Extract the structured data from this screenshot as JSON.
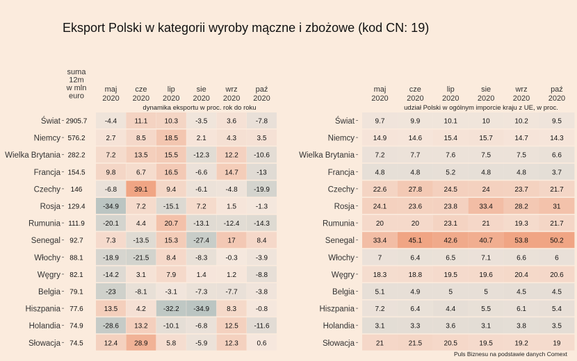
{
  "title": "Eksport Polski w kategorii wyroby mączne i zbożowe (kod CN: 19)",
  "source": "Puls Biznesu na podstawie danych Comext",
  "colors": {
    "background": "#fbebdd",
    "low": "#b9c4c1",
    "mid": "#f6e8de",
    "high": "#f0a584"
  },
  "chart_data": [
    {
      "type": "heatmap",
      "sum_header": [
        "suma",
        "12m",
        "w mln",
        "euro"
      ],
      "columns": [
        {
          "month": "maj",
          "year": "2020"
        },
        {
          "month": "cze",
          "year": "2020"
        },
        {
          "month": "lip",
          "year": "2020"
        },
        {
          "month": "sie",
          "year": "2020"
        },
        {
          "month": "wrz",
          "year": "2020"
        },
        {
          "month": "paź",
          "year": "2020"
        }
      ],
      "subtitle": "dynamika eksportu w proc. rok do roku",
      "rows": [
        {
          "country": "Świat",
          "sum": "2905.7",
          "values": [
            -4.4,
            11.1,
            10.3,
            -3.5,
            3.6,
            -7.8
          ]
        },
        {
          "country": "Niemcy",
          "sum": "576.2",
          "values": [
            2.7,
            8.5,
            18.5,
            2.1,
            4.3,
            3.5
          ]
        },
        {
          "country": "Wielka Brytania",
          "sum": "282.2",
          "values": [
            7.2,
            13.5,
            15.5,
            -12.3,
            12.2,
            -10.6
          ]
        },
        {
          "country": "Francja",
          "sum": "154.5",
          "values": [
            9.8,
            6.7,
            16.5,
            -6.6,
            14.7,
            -13
          ]
        },
        {
          "country": "Czechy",
          "sum": "146",
          "values": [
            -6.8,
            39.1,
            9.4,
            -6.1,
            -4.8,
            -19.9
          ]
        },
        {
          "country": "Rosja",
          "sum": "129.4",
          "values": [
            -34.9,
            7.2,
            -15.1,
            7.2,
            1.5,
            -1.3
          ]
        },
        {
          "country": "Rumunia",
          "sum": "111.9",
          "values": [
            -20.1,
            4.4,
            20.7,
            -13.1,
            -12.4,
            -14.3
          ]
        },
        {
          "country": "Senegal",
          "sum": "92.7",
          "values": [
            7.3,
            -13.5,
            15.3,
            -27.4,
            17,
            8.4
          ]
        },
        {
          "country": "Włochy",
          "sum": "88.1",
          "values": [
            -18.9,
            -21.5,
            8.4,
            -8.3,
            -0.3,
            -3.9
          ]
        },
        {
          "country": "Węgry",
          "sum": "82.1",
          "values": [
            -14.2,
            3.1,
            7.9,
            1.4,
            1.2,
            -8.8
          ]
        },
        {
          "country": "Belgia",
          "sum": "79.1",
          "values": [
            -23,
            -8.1,
            -3.1,
            -7.3,
            -7.7,
            -3.8
          ]
        },
        {
          "country": "Hiszpania",
          "sum": "77.6",
          "values": [
            13.5,
            4.2,
            -32.2,
            -34.9,
            8.3,
            -0.8
          ]
        },
        {
          "country": "Holandia",
          "sum": "74.9",
          "values": [
            -28.6,
            13.2,
            -10.1,
            -6.8,
            12.5,
            -11.6
          ]
        },
        {
          "country": "Słowacja",
          "sum": "74.5",
          "values": [
            12.4,
            28.9,
            5.8,
            -5.9,
            12.3,
            0.6
          ]
        }
      ]
    },
    {
      "type": "heatmap",
      "columns": [
        {
          "month": "maj",
          "year": "2020"
        },
        {
          "month": "cze",
          "year": "2020"
        },
        {
          "month": "lip",
          "year": "2020"
        },
        {
          "month": "sie",
          "year": "2020"
        },
        {
          "month": "wrz",
          "year": "2020"
        },
        {
          "month": "paź",
          "year": "2020"
        }
      ],
      "subtitle": "udział Polski w ogólnym imporcie kraju z UE, w proc.",
      "rows": [
        {
          "country": "Świat",
          "values": [
            9.7,
            9.9,
            10.1,
            10,
            10.2,
            9.5
          ]
        },
        {
          "country": "Niemcy",
          "values": [
            14.9,
            14.6,
            15.4,
            15.7,
            14.7,
            14.3
          ]
        },
        {
          "country": "Wielka Brytania",
          "values": [
            7.2,
            7.7,
            7.6,
            7.5,
            7.5,
            6.6
          ]
        },
        {
          "country": "Francja",
          "values": [
            4.8,
            4.8,
            5.2,
            4.8,
            4.8,
            3.7
          ]
        },
        {
          "country": "Czechy",
          "values": [
            22.6,
            27.8,
            24.5,
            24,
            23.7,
            21.7
          ]
        },
        {
          "country": "Rosja",
          "values": [
            24.1,
            23.6,
            23.8,
            33.4,
            28.2,
            31
          ]
        },
        {
          "country": "Rumunia",
          "values": [
            20,
            20,
            23.1,
            21,
            19.3,
            21.7
          ]
        },
        {
          "country": "Senegal",
          "values": [
            33.4,
            45.1,
            42.6,
            40.7,
            53.8,
            50.2
          ]
        },
        {
          "country": "Włochy",
          "values": [
            7,
            6.4,
            6.5,
            7.1,
            6.6,
            6
          ]
        },
        {
          "country": "Węgry",
          "values": [
            18.3,
            18.8,
            19.5,
            19.6,
            20.4,
            20.6
          ]
        },
        {
          "country": "Belgia",
          "values": [
            5.1,
            4.9,
            5,
            5,
            4.5,
            4.5
          ]
        },
        {
          "country": "Hiszpania",
          "values": [
            7.2,
            6.4,
            4.4,
            5.5,
            6.1,
            5.4
          ]
        },
        {
          "country": "Holandia",
          "values": [
            3.1,
            3.3,
            3.6,
            3.1,
            3.8,
            3.5
          ]
        },
        {
          "country": "Słowacja",
          "values": [
            21,
            21.5,
            20.5,
            19.5,
            19.2,
            19
          ]
        }
      ]
    }
  ]
}
